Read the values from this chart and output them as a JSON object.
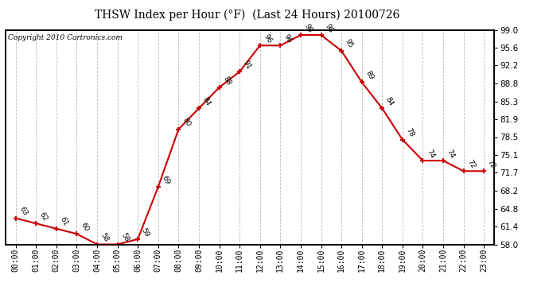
{
  "title": "THSW Index per Hour (°F)  (Last 24 Hours) 20100726",
  "copyright": "Copyright 2010 Cartronics.com",
  "hours": [
    "00:00",
    "01:00",
    "02:00",
    "03:00",
    "04:00",
    "05:00",
    "06:00",
    "07:00",
    "08:00",
    "09:00",
    "10:00",
    "11:00",
    "12:00",
    "13:00",
    "14:00",
    "15:00",
    "16:00",
    "17:00",
    "18:00",
    "19:00",
    "20:00",
    "21:00",
    "22:00",
    "23:00"
  ],
  "values": [
    63,
    62,
    61,
    60,
    58,
    58,
    59,
    69,
    80,
    84,
    88,
    91,
    96,
    96,
    98,
    98,
    95,
    89,
    84,
    78,
    74,
    74,
    72,
    72
  ],
  "ylim_min": 58.0,
  "ylim_max": 99.0,
  "yticks": [
    58.0,
    61.4,
    64.8,
    68.2,
    71.7,
    75.1,
    78.5,
    81.9,
    85.3,
    88.8,
    92.2,
    95.6,
    99.0
  ],
  "line_color": "#cc0000",
  "marker_color": "#cc0000",
  "bg_color": "#ffffff",
  "plot_bg_color": "#ffffff",
  "grid_color": "#bbbbbb",
  "title_fontsize": 10,
  "copyright_fontsize": 6.5
}
